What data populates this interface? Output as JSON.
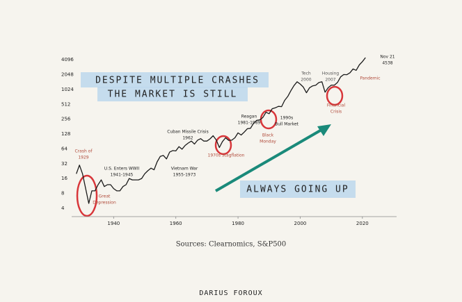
{
  "chart_data": {
    "type": "line",
    "log_scale": true,
    "color": "#1a1a1a",
    "headline": [
      "DESPITE MULTIPLE CRASHES",
      "THE MARKET IS STILL"
    ],
    "callout": "ALWAYS GOING UP",
    "source": "Sources: Clearnomics, S&P500",
    "author": "DARIUS FOROUX",
    "x": [
      1928,
      1929,
      1930,
      1931,
      1932,
      1933,
      1934,
      1935,
      1936,
      1937,
      1938,
      1939,
      1940,
      1941,
      1942,
      1943,
      1944,
      1945,
      1946,
      1947,
      1948,
      1949,
      1950,
      1951,
      1952,
      1953,
      1954,
      1955,
      1956,
      1957,
      1958,
      1959,
      1960,
      1961,
      1962,
      1963,
      1964,
      1965,
      1966,
      1967,
      1968,
      1969,
      1970,
      1971,
      1972,
      1973,
      1974,
      1975,
      1976,
      1977,
      1978,
      1979,
      1980,
      1981,
      1982,
      1983,
      1984,
      1985,
      1986,
      1987,
      1988,
      1989,
      1990,
      1991,
      1992,
      1993,
      1994,
      1995,
      1996,
      1997,
      1998,
      1999,
      2000,
      2001,
      2002,
      2003,
      2004,
      2005,
      2006,
      2007,
      2008,
      2009,
      2010,
      2011,
      2012,
      2013,
      2014,
      2015,
      2016,
      2017,
      2018,
      2019,
      2020,
      2021
    ],
    "values": [
      20,
      30,
      20,
      10,
      5,
      9,
      9,
      12,
      15,
      11,
      12,
      12,
      10,
      9,
      9,
      11,
      12,
      16,
      15,
      15,
      15,
      16,
      20,
      23,
      26,
      24,
      35,
      45,
      47,
      40,
      55,
      59,
      58,
      71,
      63,
      75,
      84,
      92,
      80,
      96,
      103,
      92,
      92,
      102,
      118,
      97,
      68,
      90,
      107,
      95,
      96,
      107,
      135,
      122,
      140,
      164,
      167,
      211,
      242,
      247,
      277,
      353,
      330,
      417,
      435,
      466,
      459,
      615,
      740,
      970,
      1229,
      1469,
      1320,
      1148,
      880,
      1111,
      1211,
      1248,
      1418,
      1468,
      903,
      1115,
      1257,
      1257,
      1426,
      1848,
      2058,
      2043,
      2238,
      2673,
      2506,
      3230,
      3756,
      4538
    ],
    "xlim": [
      1926.5,
      2031
    ],
    "xticks": [
      1940,
      1960,
      1980,
      2000,
      2020
    ],
    "ylim": [
      2.7,
      5000
    ],
    "yticks": [
      4,
      8,
      16,
      32,
      64,
      128,
      256,
      512,
      1024,
      2048,
      4096
    ],
    "annotations": [
      {
        "lines": [
          "Crash of",
          "1929"
        ],
        "color": "#b04a3a"
      },
      {
        "lines": [
          "U.S. Enters WWII",
          "1941-1945"
        ],
        "color": "#222222"
      },
      {
        "lines": [
          "Great",
          "Depression"
        ],
        "color": "#b04a3a"
      },
      {
        "lines": [
          "Cuban Missile Crisis",
          "1962"
        ],
        "color": "#222222"
      },
      {
        "lines": [
          "Vietnam War",
          "1955-1973"
        ],
        "color": "#222222"
      },
      {
        "lines": [
          "1970s Stagflation"
        ],
        "color": "#b04a3a"
      },
      {
        "lines": [
          "Reagan",
          "1981-1989"
        ],
        "color": "#222222"
      },
      {
        "lines": [
          "Black",
          "Monday"
        ],
        "color": "#b04a3a"
      },
      {
        "lines": [
          "1990s",
          "Bull Market"
        ],
        "color": "#222222"
      },
      {
        "lines": [
          "Tech",
          "2000"
        ],
        "color": "#555555"
      },
      {
        "lines": [
          "Housing",
          "2007"
        ],
        "color": "#555555"
      },
      {
        "lines": [
          "Financial",
          "Crisis"
        ],
        "color": "#b04a3a"
      },
      {
        "lines": [
          "Pandemic"
        ],
        "color": "#b04a3a"
      },
      {
        "lines": [
          "Nov 21",
          "4538"
        ],
        "color": "#222222"
      }
    ]
  }
}
